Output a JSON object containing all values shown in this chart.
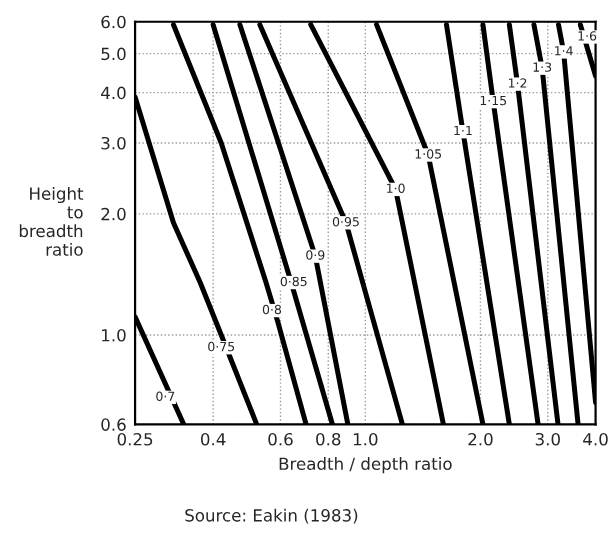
{
  "chart_data": {
    "type": "line",
    "xlabel": "Breadth / depth ratio",
    "ylabel": "Height\nto\nbreadth\nratio",
    "log": "xy",
    "grid": true,
    "marker": "none",
    "line_style": "solid",
    "xlim": [
      0.25,
      4.0
    ],
    "ylim": [
      0.6,
      6.0
    ],
    "xticks": [
      0.25,
      0.4,
      0.6,
      0.8,
      {
        "value": 1,
        "label": "1.0"
      },
      {
        "value": 2,
        "label": "2.0"
      },
      {
        "value": 3,
        "label": "3.0"
      },
      {
        "value": 4,
        "label": "4.0"
      }
    ],
    "yticks": [
      0.6,
      {
        "value": 1,
        "label": "1.0"
      },
      {
        "value": 2,
        "label": "2.0"
      },
      {
        "value": 3,
        "label": "3.0"
      },
      {
        "value": 4,
        "label": "4.0"
      },
      {
        "value": 5,
        "label": "5.0"
      },
      {
        "value": 6,
        "label": "6.0"
      }
    ],
    "series": [
      {
        "color": "#000000",
        "x": [
          0.25,
          0.335
        ],
        "values": [
          1.11,
          0.6
        ]
      },
      {
        "color": "#000000",
        "x": [
          0.25,
          0.315,
          0.37,
          0.42,
          0.52
        ],
        "values": [
          3.9,
          1.9,
          1.35,
          1.0,
          0.6
        ]
      },
      {
        "color": "#000000",
        "x": [
          0.315,
          0.42,
          0.55,
          0.59,
          0.7
        ],
        "values": [
          5.9,
          3.0,
          1.35,
          1.08,
          0.6
        ]
      },
      {
        "color": "#000000",
        "x": [
          0.4,
          0.64,
          0.82
        ],
        "values": [
          5.9,
          1.35,
          0.6
        ]
      },
      {
        "color": "#000000",
        "x": [
          0.47,
          0.74,
          0.9
        ],
        "values": [
          5.9,
          1.57,
          0.6
        ]
      },
      {
        "color": "#000000",
        "x": [
          0.53,
          0.89,
          1.25
        ],
        "values": [
          5.9,
          1.9,
          0.6
        ]
      },
      {
        "color": "#000000",
        "x": [
          0.72,
          1.2,
          1.6
        ],
        "values": [
          5.9,
          2.3,
          0.6
        ]
      },
      {
        "color": "#000000",
        "x": [
          1.07,
          1.46,
          2.03
        ],
        "values": [
          5.9,
          2.8,
          0.6
        ]
      },
      {
        "color": "#000000",
        "x": [
          1.63,
          1.8,
          2.38
        ],
        "values": [
          5.9,
          3.2,
          0.6
        ]
      },
      {
        "color": "#000000",
        "x": [
          2.03,
          2.16,
          2.83
        ],
        "values": [
          5.9,
          3.8,
          0.6
        ]
      },
      {
        "color": "#000000",
        "x": [
          2.38,
          2.5,
          3.19
        ],
        "values": [
          5.9,
          4.2,
          0.6
        ]
      },
      {
        "color": "#000000",
        "x": [
          2.76,
          2.9,
          3.6
        ],
        "values": [
          5.9,
          4.6,
          0.6
        ]
      },
      {
        "color": "#000000",
        "x": [
          3.2,
          3.3,
          4.0
        ],
        "values": [
          5.9,
          5.05,
          0.68
        ]
      },
      {
        "color": "#000000",
        "x": [
          3.65,
          4.0
        ],
        "values": [
          5.9,
          4.4
        ]
      }
    ],
    "annotations": [
      {
        "text": "0·7",
        "x": 0.3,
        "y": 0.7
      },
      {
        "text": "0·75",
        "x": 0.42,
        "y": 0.93
      },
      {
        "text": "0·8",
        "x": 0.57,
        "y": 1.15
      },
      {
        "text": "0·85",
        "x": 0.65,
        "y": 1.35
      },
      {
        "text": "0·9",
        "x": 0.74,
        "y": 1.57
      },
      {
        "text": "0·95",
        "x": 0.89,
        "y": 1.9
      },
      {
        "text": "1·0",
        "x": 1.2,
        "y": 2.3
      },
      {
        "text": "1·05",
        "x": 1.46,
        "y": 2.8
      },
      {
        "text": "1·1",
        "x": 1.8,
        "y": 3.2
      },
      {
        "text": "1·15",
        "x": 2.16,
        "y": 3.8
      },
      {
        "text": "1·2",
        "x": 2.5,
        "y": 4.2
      },
      {
        "text": "1·3",
        "x": 2.9,
        "y": 4.6
      },
      {
        "text": "1·4",
        "x": 3.3,
        "y": 5.05
      },
      {
        "text": "1·6",
        "x": 3.8,
        "y": 5.5
      },
      "Source: Eakin (1983)"
    ]
  }
}
